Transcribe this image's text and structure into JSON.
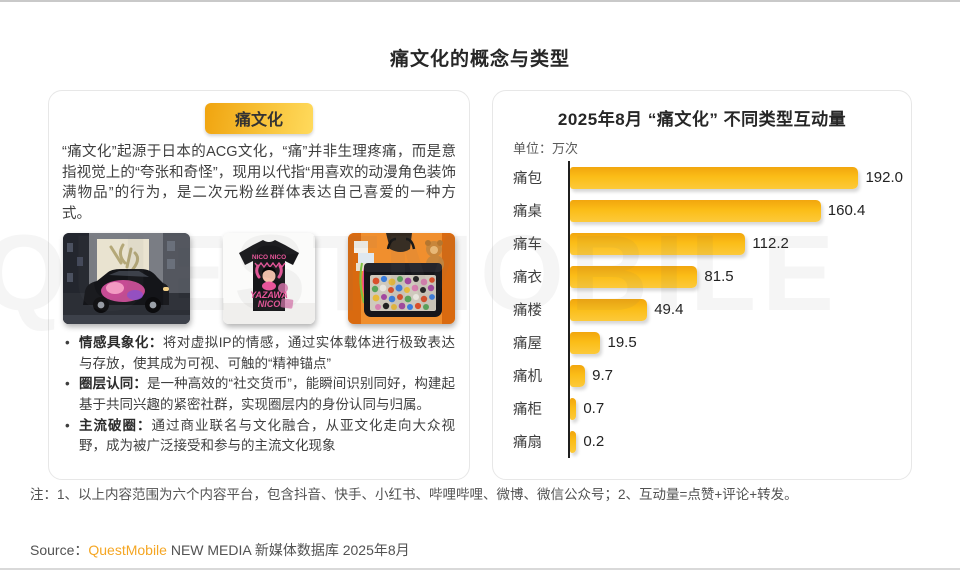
{
  "page": {
    "title": "痛文化的概念与类型"
  },
  "watermark": {
    "text": "QUESTMOBILE"
  },
  "left_panel": {
    "badge_label": "痛文化",
    "description": "“痛文化”起源于日本的ACG文化，“痛”并非生理疼痛，而是意指视觉上的“夸张和奇怪”，现用以代指“用喜欢的动漫角色装饰满物品”的行为，是二次元粉丝群体表达自己喜爱的一种方式。",
    "photos": {
      "tshirt_print_top": "NICO NICO",
      "tshirt_print_bottom1": "YAZAWA",
      "tshirt_print_bottom2": "NICO"
    },
    "bullets": [
      {
        "head": "情感具象化：",
        "text": "将对虚拟IP的情感，通过实体载体进行极致表达与存放，使其成为可视、可触的“精神锚点”"
      },
      {
        "head": "圈层认同：",
        "text": "是一种高效的“社交货币”，能瞬间识别同好，构建起基于共同兴趣的紧密社群，实现圈层内的身份认同与归属。"
      },
      {
        "head": "主流破圈：",
        "text": "通过商业联名与文化融合，从亚文化走向大众视野，成为被广泛接受和参与的主流文化现象"
      }
    ]
  },
  "chart": {
    "title": "2025年8月 “痛文化” 不同类型互动量",
    "unit_label": "单位：万次"
  },
  "chart_data": {
    "type": "bar",
    "orientation": "horizontal",
    "title": "2025年8月 “痛文化” 不同类型互动量",
    "unit": "万次",
    "categories": [
      "痛包",
      "痛桌",
      "痛车",
      "痛衣",
      "痛楼",
      "痛屋",
      "痛机",
      "痛柜",
      "痛扇"
    ],
    "values": [
      192.0,
      160.4,
      112.2,
      81.5,
      49.4,
      19.5,
      9.7,
      0.7,
      0.2
    ],
    "value_labels": [
      "192.0",
      "160.4",
      "112.2",
      "81.5",
      "49.4",
      "19.5",
      "9.7",
      "0.7",
      "0.2"
    ],
    "xlim": [
      0,
      213
    ],
    "grid": false,
    "legend": false,
    "value_label_position": "right",
    "bar_color": "#FBB617",
    "axis_line_color": "#1F1F1F"
  },
  "footer": {
    "note": "注：1、以上内容范围为六个内容平台，包含抖音、快手、小红书、哔哩哔哩、微博、微信公众号；2、互动量=点赞+评论+转发。",
    "source_prefix": "Source：",
    "source_brand": "QuestMobile",
    "source_suffix": " NEW MEDIA 新媒体数据库 2025年8月",
    "brand_color": "#F5A623"
  }
}
